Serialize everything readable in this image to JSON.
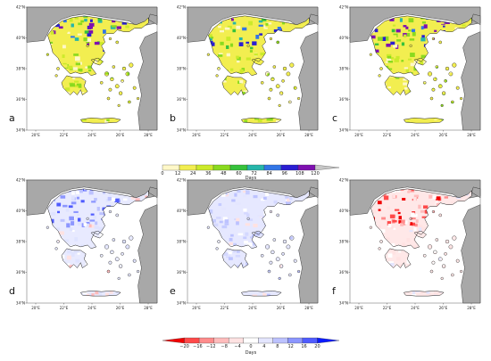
{
  "lat_ticks": [
    "34°N",
    "36°N",
    "38°N",
    "40°N",
    "42°N"
  ],
  "lon_ticks": [
    "20°E",
    "22°E",
    "24°E",
    "26°E",
    "28°E"
  ],
  "panels": [
    {
      "id": "a",
      "label": "a",
      "row": 0,
      "col": 0,
      "mode": "days"
    },
    {
      "id": "b",
      "label": "b",
      "row": 0,
      "col": 1,
      "mode": "days"
    },
    {
      "id": "c",
      "label": "c",
      "row": 0,
      "col": 2,
      "mode": "days"
    },
    {
      "id": "d",
      "label": "d",
      "row": 1,
      "col": 0,
      "mode": "diff-blue"
    },
    {
      "id": "e",
      "label": "e",
      "row": 1,
      "col": 1,
      "mode": "diff-lightblue"
    },
    {
      "id": "f",
      "label": "f",
      "row": 1,
      "col": 2,
      "mode": "diff-red"
    }
  ],
  "colorbar_top": {
    "unit": "Days",
    "ticks": [
      "0",
      "12",
      "24",
      "36",
      "48",
      "60",
      "72",
      "84",
      "96",
      "108",
      "120"
    ],
    "colors": [
      "#fff8c8",
      "#f2ee50",
      "#ccea2a",
      "#8ada1e",
      "#36c23c",
      "#26b6aa",
      "#3276e6",
      "#2a1ed2",
      "#7e10b0",
      "#c6c6c6"
    ]
  },
  "colorbar_bottom": {
    "unit": "Days",
    "ticks": [
      "−20",
      "−16",
      "−12",
      "−8",
      "−4",
      "0",
      "4",
      "8",
      "12",
      "16",
      "20"
    ],
    "colors": [
      "#f00000",
      "#ff4a4a",
      "#ff8c8c",
      "#ffbcbc",
      "#ffe2e2",
      "#ffffff",
      "#e4e6ff",
      "#bcc2ff",
      "#8c96ff",
      "#505cff",
      "#0a1aff"
    ]
  },
  "colors": {
    "land_other": "#a8a8a8",
    "sea": "#ffffff",
    "coast": "#1a1a1a"
  }
}
